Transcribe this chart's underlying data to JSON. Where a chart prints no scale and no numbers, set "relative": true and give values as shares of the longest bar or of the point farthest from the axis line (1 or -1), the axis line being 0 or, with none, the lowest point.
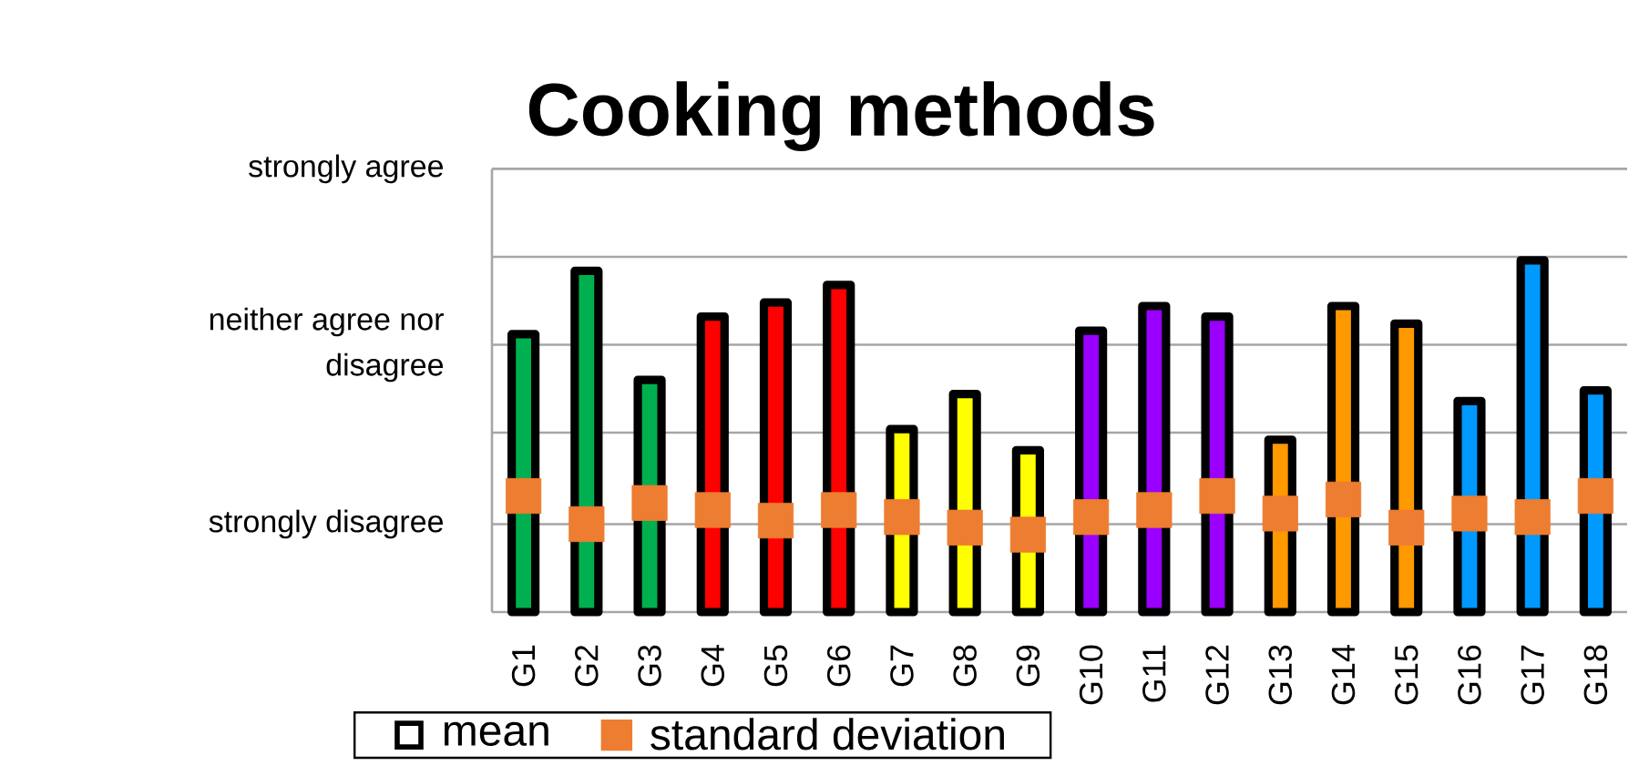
{
  "chart_data": {
    "type": "bar",
    "title": "Cooking methods",
    "relative": true,
    "categories": [
      "G1",
      "G2",
      "G3",
      "G4",
      "G5",
      "G6",
      "G7",
      "G8",
      "G9",
      "G10",
      "G11",
      "G12",
      "G13",
      "G14",
      "G15",
      "G16",
      "G17",
      "G18"
    ],
    "series": [
      {
        "name": "mean",
        "colors": [
          "#00b050",
          "#00b050",
          "#00b050",
          "#ff0000",
          "#ff0000",
          "#ff0000",
          "#ffff00",
          "#ffff00",
          "#ffff00",
          "#9900ff",
          "#9900ff",
          "#9900ff",
          "#ff9900",
          "#ff9900",
          "#ff9900",
          "#0099ff",
          "#0099ff",
          "#0099ff"
        ],
        "values": [
          0.79,
          0.97,
          0.66,
          0.84,
          0.88,
          0.93,
          0.52,
          0.62,
          0.46,
          0.8,
          0.87,
          0.84,
          0.49,
          0.87,
          0.82,
          0.6,
          1,
          0.63
        ]
      },
      {
        "name": "standard deviation",
        "type": "scatter",
        "color": "#ed7d31",
        "marker": "square",
        "values": [
          0.33,
          0.25,
          0.31,
          0.29,
          0.26,
          0.29,
          0.27,
          0.24,
          0.22,
          0.27,
          0.29,
          0.33,
          0.28,
          0.32,
          0.24,
          0.28,
          0.27,
          0.33
        ]
      }
    ],
    "ref_lines": [
      {
        "axis": "y",
        "value": 0.25,
        "label": "strongly disagree",
        "color": "#a6a6a6"
      },
      {
        "axis": "y",
        "value": 0.51,
        "color": "#a6a6a6"
      },
      {
        "axis": "y",
        "value": 0.76,
        "label": "neither agree nor disagree",
        "color": "#a6a6a6"
      },
      {
        "axis": "y",
        "value": 1.01,
        "color": "#a6a6a6"
      },
      {
        "axis": "y",
        "value": 1.26,
        "label": "strongly agree",
        "color": "#a6a6a6"
      }
    ],
    "legend": "bottom"
  }
}
